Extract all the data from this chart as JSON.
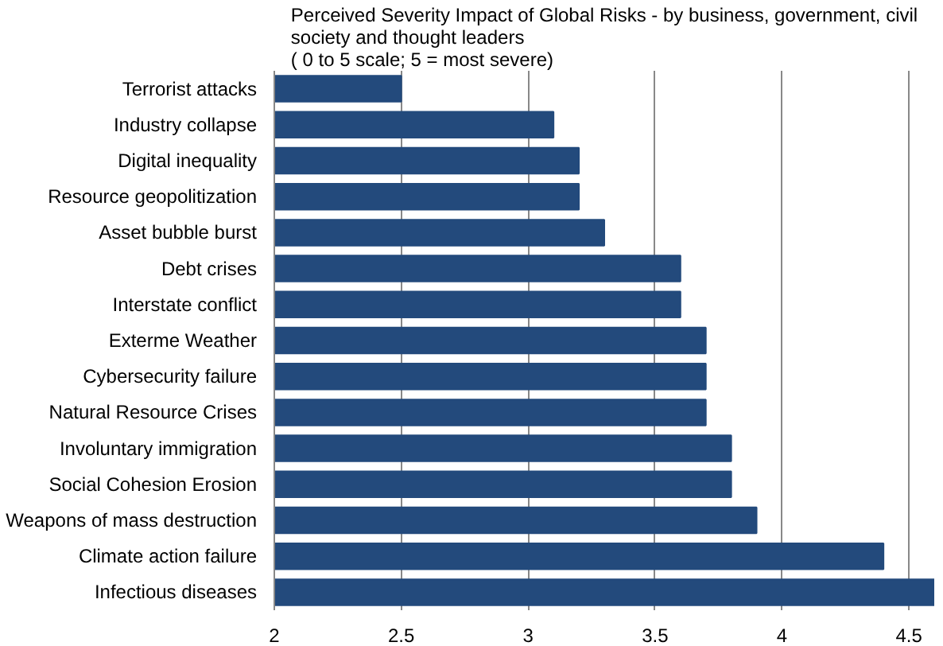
{
  "chart_data": {
    "type": "bar",
    "orientation": "horizontal",
    "title": "Perceived Severity Impact of Global Risks - by business, government, civil\nsociety and thought leaders\n( 0 to 5 scale; 5 = most severe)",
    "categories": [
      "Terrorist attacks",
      "Industry collapse",
      "Digital inequality",
      "Resource geopolitization",
      "Asset bubble burst",
      "Debt crises",
      "Interstate conflict",
      "Exterme Weather",
      "Cybersecurity failure",
      "Natural Resource Crises",
      "Involuntary immigration",
      "Social Cohesion Erosion",
      "Weapons of mass destruction",
      "Climate action failure",
      "Infectious diseases"
    ],
    "values": [
      2.5,
      3.1,
      3.2,
      3.2,
      3.3,
      3.6,
      3.6,
      3.7,
      3.7,
      3.7,
      3.8,
      3.8,
      3.9,
      4.4,
      4.6
    ],
    "color": "#234a7c",
    "xlim": [
      2,
      4.6
    ],
    "xticks": [
      2,
      2.5,
      3,
      3.5,
      4,
      4.5
    ],
    "grid": "x"
  }
}
